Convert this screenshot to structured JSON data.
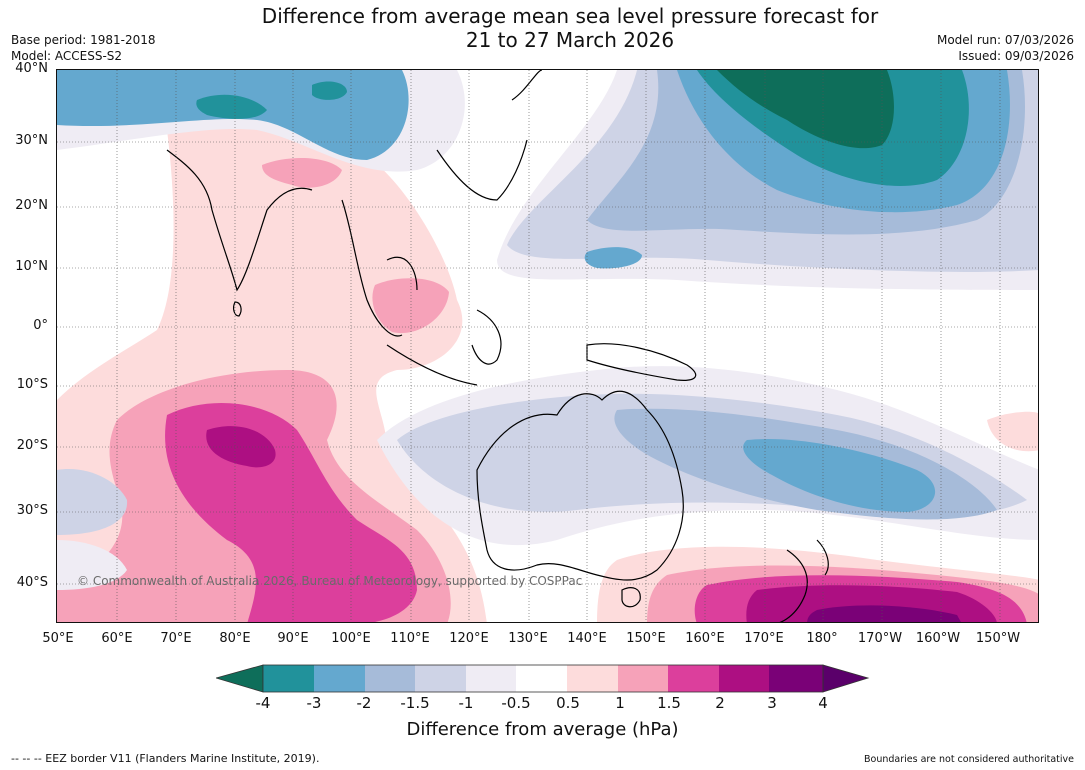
{
  "header": {
    "title_line1": "Difference from average mean sea level pressure forecast for",
    "title_line2": "21 to 27 March 2026",
    "base_period": "Base period: 1981-2018",
    "model": "Model: ACCESS-S2",
    "model_run": "Model run: 07/03/2026",
    "issued": "Issued: 09/03/2026"
  },
  "map": {
    "lat_labels": [
      "40°N",
      "30°N",
      "20°N",
      "10°N",
      "0°",
      "10°S",
      "20°S",
      "30°S",
      "40°S"
    ],
    "lon_labels": [
      "50°E",
      "60°E",
      "70°E",
      "80°E",
      "90°E",
      "100°E",
      "110°E",
      "120°E",
      "130°E",
      "140°E",
      "150°E",
      "160°E",
      "170°E",
      "180°",
      "170°W",
      "160°W",
      "150°W"
    ],
    "copyright": "© Commonwealth of Australia 2026, Bureau of Meteorology, supported by COSPPac"
  },
  "legend": {
    "ticks": [
      "-4",
      "-3",
      "-2",
      "-1.5",
      "-1",
      "-0.5",
      "0.5",
      "1",
      "1.5",
      "2",
      "3",
      "4"
    ],
    "colors": [
      "#0e6e5a",
      "#21929b",
      "#64a8cf",
      "#a6bbd9",
      "#ced3e6",
      "#efecf4",
      "#ffffff",
      "#fddcdc",
      "#f6a2b9",
      "#dc3f9c",
      "#ad0f82",
      "#7a0177",
      "#5a006a"
    ],
    "label": "Difference from average (hPa)"
  },
  "footer": {
    "eez_note": "--  --  -- EEZ border V11 (Flanders Marine Institute, 2019).",
    "disclaimer": "Boundaries are not considered authoritative"
  }
}
